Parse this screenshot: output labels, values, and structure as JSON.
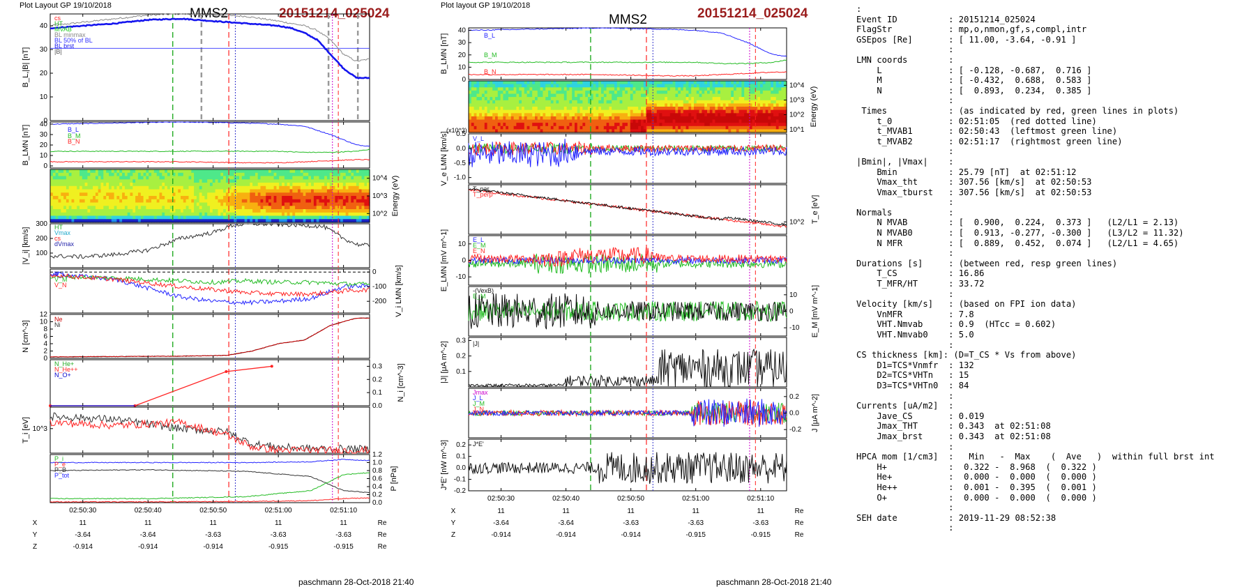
{
  "header": {
    "left_title": "Plot Layout GP 19/10/2018",
    "mid_title": "Plot layout GP 19/10/2018",
    "spacecraft": "MMS2",
    "event_id": "20151214_025024"
  },
  "footer": {
    "left": "paschmann 28-Oct-2018 21:40",
    "right": "paschmann 28-Oct-2018 21:40"
  },
  "colors": {
    "L": "#2222ff",
    "M": "#22bb22",
    "N": "#ff2222",
    "accent": "#9a1c1c",
    "mvab_green": "#22aa22",
    "cs_red": "#ff2222",
    "magenta": "#cc00cc"
  },
  "time_axis": {
    "start": "02:50:25",
    "end": "02:51:14",
    "ticks": [
      "02:50:30",
      "02:50:40",
      "02:50:50",
      "02:51:00",
      "02:51:10"
    ]
  },
  "coords_table": {
    "labels": [
      "X",
      "Y",
      "Z"
    ],
    "unit": "Re",
    "left": [
      [
        "11",
        "11",
        "11",
        "11",
        "11"
      ],
      [
        "-3.64",
        "-3.64",
        "-3.63",
        "-3.63",
        "-3.63"
      ],
      [
        "-0.914",
        "-0.914",
        "-0.914",
        "-0.915",
        "-0.915"
      ]
    ],
    "right": [
      [
        "11",
        "11",
        "11",
        "11",
        "11"
      ],
      [
        "-3.64",
        "-3.64",
        "-3.63",
        "-3.63",
        "-3.63"
      ],
      [
        "-0.914",
        "-0.914",
        "-0.914",
        "-0.915",
        "-0.915"
      ]
    ]
  },
  "chart_data": [
    {
      "type": "line",
      "panel": "left-1",
      "ylabel": "B_L,|B| [nT]",
      "ylim": [
        0,
        45
      ],
      "yticks": [
        "0",
        "10",
        "20",
        "30",
        "40"
      ],
      "legend": [
        "cs",
        "HT",
        "MVAB",
        "BL minmax",
        "BL 50% of BL",
        "BL brst",
        "|B|"
      ],
      "series": [
        {
          "name": "BL brst",
          "color": "#1515ee",
          "x": [
            25,
            30,
            35,
            40,
            45,
            50,
            55,
            60,
            62,
            64,
            66,
            68,
            70,
            72,
            74
          ],
          "y": [
            39,
            40,
            41,
            42.5,
            43,
            42,
            41,
            40,
            39,
            37,
            34,
            28,
            22,
            18,
            18
          ]
        },
        {
          "name": "|B|",
          "color": "#888888",
          "x": [
            25,
            30,
            35,
            40,
            45,
            50,
            55,
            60,
            62,
            64,
            66,
            68,
            70,
            72,
            74
          ],
          "y": [
            40,
            41.5,
            43,
            44.5,
            45,
            44.5,
            44,
            42,
            41,
            40,
            38,
            34,
            28,
            25,
            26
          ]
        },
        {
          "name": "BL 50% of BL",
          "color": "#3333ff",
          "x": [
            25,
            74
          ],
          "y": [
            30.5,
            30.5
          ]
        }
      ]
    },
    {
      "type": "line",
      "panel": "left-2",
      "ylabel": "B_LMN [nT]",
      "ylim": [
        -2,
        42
      ],
      "yticks": [
        "0",
        "10",
        "20",
        "30",
        "40"
      ],
      "legend": [
        "B_L",
        "B_M",
        "B_N"
      ],
      "series": [
        {
          "name": "B_L",
          "color": "#2222ff",
          "x": [
            25,
            35,
            45,
            55,
            60,
            64,
            68,
            72,
            74
          ],
          "y": [
            40,
            41,
            42,
            41,
            40,
            38,
            30,
            20,
            19
          ]
        },
        {
          "name": "B_M",
          "color": "#22bb22",
          "x": [
            25,
            35,
            45,
            55,
            60,
            64,
            68,
            72,
            74
          ],
          "y": [
            14,
            14,
            14,
            14,
            14,
            13,
            13,
            14,
            16
          ]
        },
        {
          "name": "B_N",
          "color": "#ff2222",
          "x": [
            25,
            35,
            45,
            55,
            60,
            64,
            68,
            72,
            74
          ],
          "y": [
            4,
            4,
            4,
            3,
            3,
            4,
            5,
            6,
            6
          ]
        }
      ]
    },
    {
      "type": "heatmap",
      "panel": "left-3",
      "ylabel": "Energy (eV)",
      "yticks": [
        "10^2",
        "10^3",
        "10^4"
      ]
    },
    {
      "type": "line",
      "panel": "left-4",
      "ylabel": "|V_i| [km/s]",
      "ylim": [
        0,
        300
      ],
      "yticks": [
        "100",
        "200",
        "300"
      ],
      "legend": [
        "HT",
        "Vmax",
        "cs",
        "dVmax"
      ],
      "series": [
        {
          "name": "|V_i|",
          "color": "#333333",
          "x": [
            25,
            30,
            35,
            40,
            45,
            50,
            53,
            56,
            60,
            64,
            67,
            70,
            72,
            74
          ],
          "y": [
            80,
            75,
            90,
            120,
            200,
            240,
            290,
            300,
            295,
            290,
            280,
            200,
            160,
            150
          ]
        }
      ]
    },
    {
      "type": "line",
      "panel": "left-5",
      "ylabel": "V_i LMN [km/s]",
      "ylim": [
        -280,
        20
      ],
      "yticks": [
        "0",
        "-100",
        "-200"
      ],
      "legend": [
        "V_L",
        "V_M",
        "V_N"
      ],
      "series": [
        {
          "name": "V_L",
          "color": "#2222ff",
          "x": [
            25,
            35,
            45,
            50,
            55,
            60,
            65,
            70,
            74
          ],
          "y": [
            -10,
            -50,
            -170,
            -200,
            -210,
            -200,
            -180,
            -100,
            -95
          ]
        },
        {
          "name": "V_M",
          "color": "#22bb22",
          "x": [
            25,
            35,
            45,
            50,
            55,
            60,
            65,
            70,
            74
          ],
          "y": [
            -30,
            -40,
            -60,
            -70,
            -60,
            -70,
            -70,
            -80,
            -85
          ]
        },
        {
          "name": "V_N",
          "color": "#ff2222",
          "x": [
            25,
            35,
            45,
            50,
            55,
            60,
            65,
            70,
            74
          ],
          "y": [
            -20,
            -50,
            -100,
            -120,
            -140,
            -150,
            -150,
            -130,
            -120
          ]
        }
      ]
    },
    {
      "type": "line",
      "panel": "left-6",
      "ylabel": "N [cm^-3]",
      "ylim": [
        0,
        12
      ],
      "yticks": [
        "0",
        "2",
        "4",
        "6",
        "8",
        "10",
        "12"
      ],
      "legend": [
        "Ne",
        "Ni"
      ],
      "series": [
        {
          "name": "Ne",
          "color": "#cc0000",
          "x": [
            25,
            35,
            45,
            52,
            56,
            60,
            64,
            68,
            72,
            74
          ],
          "y": [
            0.4,
            0.5,
            0.6,
            0.8,
            2,
            4,
            5,
            9,
            11,
            11
          ]
        },
        {
          "name": "Ni",
          "color": "#333333",
          "x": [
            25,
            35,
            45,
            52,
            56,
            60,
            64,
            68,
            72,
            74
          ],
          "y": [
            0.4,
            0.5,
            0.6,
            0.8,
            2,
            4,
            5,
            9,
            11,
            11
          ]
        }
      ]
    },
    {
      "type": "line",
      "panel": "left-7",
      "ylabel": "N_i [cm^-3]",
      "ylim": [
        0,
        0.35
      ],
      "yticks": [
        "0.0",
        "0.1",
        "0.2",
        "0.3"
      ],
      "legend": [
        "N_He+",
        "N_He++",
        "N_O+"
      ],
      "series": [
        {
          "name": "N_He++",
          "color": "#ff2222",
          "x": [
            25,
            38,
            52,
            59
          ],
          "y": [
            0,
            0,
            0.26,
            0.3
          ]
        }
      ]
    },
    {
      "type": "line",
      "panel": "left-8",
      "ylabel": "T_i [eV]",
      "yticks": [
        "10^3"
      ],
      "series": [
        {
          "name": "T_par",
          "color": "#333333",
          "x": [
            25,
            35,
            45,
            52,
            56,
            60,
            65,
            70,
            74
          ],
          "y": [
            1400,
            1300,
            1000,
            900,
            500,
            400,
            350,
            340,
            330
          ]
        },
        {
          "name": "T_perp",
          "color": "#ff2222",
          "x": [
            25,
            35,
            45,
            52,
            56,
            60,
            65,
            70,
            74
          ],
          "y": [
            1200,
            1100,
            1200,
            800,
            400,
            300,
            300,
            280,
            290
          ]
        }
      ]
    },
    {
      "type": "line",
      "panel": "left-9",
      "ylabel": "P [nPa]",
      "ylim": [
        0,
        1.2
      ],
      "yticks": [
        "0.0",
        "0.2",
        "0.4",
        "0.6",
        "0.8",
        "1.0",
        "1.2"
      ],
      "legend": [
        "P_i",
        "P_e",
        "P_B",
        "P_tot"
      ],
      "series": [
        {
          "name": "P_tot",
          "color": "#2222ff",
          "x": [
            25,
            40,
            55,
            65,
            70,
            74
          ],
          "y": [
            1.0,
            1.0,
            1.0,
            1.02,
            1.08,
            1.05
          ]
        },
        {
          "name": "P_B",
          "color": "#333333",
          "x": [
            25,
            40,
            55,
            65,
            70,
            74
          ],
          "y": [
            0.8,
            0.82,
            0.78,
            0.65,
            0.3,
            0.25
          ]
        },
        {
          "name": "P_i",
          "color": "#22bb22",
          "x": [
            25,
            40,
            55,
            65,
            70,
            74
          ],
          "y": [
            0.1,
            0.1,
            0.15,
            0.3,
            0.7,
            0.75
          ]
        },
        {
          "name": "P_e",
          "color": "#ff2222",
          "x": [
            25,
            40,
            55,
            65,
            70,
            74
          ],
          "y": [
            0.02,
            0.02,
            0.03,
            0.05,
            0.1,
            0.12
          ]
        }
      ]
    },
    {
      "type": "line",
      "panel": "mid-1",
      "ylabel": "B_LMN [nT]",
      "ylim": [
        0,
        42
      ],
      "yticks": [
        "0",
        "10",
        "20",
        "30",
        "40"
      ],
      "legend": [
        "B_L",
        "B_M",
        "B_N"
      ],
      "series": [
        {
          "name": "B_L",
          "color": "#2222ff",
          "x": [
            25,
            35,
            45,
            55,
            60,
            64,
            68,
            72,
            74
          ],
          "y": [
            40,
            41,
            42,
            41,
            40,
            38,
            30,
            20,
            19
          ]
        },
        {
          "name": "B_M",
          "color": "#22bb22",
          "x": [
            25,
            35,
            45,
            55,
            60,
            64,
            68,
            72,
            74
          ],
          "y": [
            14,
            14,
            14,
            14,
            14,
            13,
            13,
            14,
            16
          ]
        },
        {
          "name": "B_N",
          "color": "#ff2222",
          "x": [
            25,
            35,
            45,
            55,
            60,
            64,
            68,
            72,
            74
          ],
          "y": [
            4,
            4,
            4,
            3,
            3,
            4,
            5,
            6,
            6
          ]
        }
      ]
    },
    {
      "type": "heatmap",
      "panel": "mid-2",
      "ylabel": "Energy (eV)",
      "yticks": [
        "10^1",
        "10^2",
        "10^3",
        "10^4"
      ]
    },
    {
      "type": "line",
      "panel": "mid-3",
      "ylabel": "V_e LMN [km/s]",
      "ylim": [
        -1.2,
        0.5
      ],
      "yticks": [
        "0.5",
        "0.0",
        "-0.5",
        "-1.0"
      ],
      "legend": [
        "V_L"
      ]
    },
    {
      "type": "line",
      "panel": "mid-4",
      "ylabel": "T_e [eV]",
      "yticks": [
        "10^2"
      ],
      "legend": [
        "T_par",
        "T_perp"
      ]
    },
    {
      "type": "line",
      "panel": "mid-5",
      "ylabel": "E_LMN [mV m^-1]",
      "ylim": [
        -15,
        15
      ],
      "yticks": [
        "10",
        "0",
        "-10"
      ],
      "legend": [
        "E_L",
        "E_M",
        "E_N"
      ]
    },
    {
      "type": "line",
      "panel": "mid-6",
      "ylabel": "E_M [mV m^-1]",
      "ylim": [
        -15,
        15
      ],
      "yticks": [
        "10",
        "0",
        "-10"
      ],
      "legend": [
        "-(VexB)",
        "E_M"
      ]
    },
    {
      "type": "line",
      "panel": "mid-7",
      "ylabel": "|J| [μA m^-2]",
      "ylim": [
        0,
        0.32
      ],
      "yticks": [
        "0.1",
        "0.2",
        "0.3"
      ],
      "legend": [
        "|J|"
      ]
    },
    {
      "type": "line",
      "panel": "mid-8",
      "ylabel": "J [μA m^-2]",
      "ylim": [
        -0.3,
        0.3
      ],
      "yticks": [
        "0.2",
        "0.0",
        "-0.2"
      ],
      "legend": [
        "Jmax",
        "J_L",
        "J_M",
        "J_N"
      ]
    },
    {
      "type": "line",
      "panel": "mid-9",
      "ylabel": "J*E' [nW m^-3]",
      "ylim": [
        -0.2,
        0.25
      ],
      "yticks": [
        "0.2",
        "0.1",
        "0.0",
        "-0.1",
        "-0.2"
      ],
      "legend": [
        "J*E'"
      ]
    }
  ],
  "info": {
    "lines": [
      ":",
      "Event ID          : 20151214_025024",
      "FlagStr           : mp,o,nmon,gf,s,compl,intr",
      "GSEpos [Re]       : [ 11.00, -3.64, -0.91 ]",
      "                  :",
      "LMN coords        :",
      "    L             : [ -0.128, -0.687,  0.716 ]",
      "    M             : [ -0.432,  0.688,  0.583 ]",
      "    N             : [  0.893,  0.234,  0.385 ]",
      "                  :",
      " Times            : (as indicated by red, green lines in plots)",
      "    t_0           : 02:51:05  (red dotted line)",
      "    t_MVAB1       : 02:50:43  (leftmost green line)",
      "    t_MVAB2       : 02:51:17  (rightmost green line)",
      "                  :",
      "|Bmin|, |Vmax|    :",
      "    Bmin          : 25.79 [nT]  at 02:51:12",
      "    Vmax_tht      : 307.56 [km/s]  at 02:50:53",
      "    Vmax_tburst   : 307.56 [km/s]  at 02:50:53",
      "                  :",
      "Normals           :",
      "    N MVAB        : [  0.900,  0.224,  0.373 ]   (L2/L1 = 2.13)",
      "    N MVAB0       : [  0.913, -0.277, -0.300 ]   (L3/L2 = 11.32)",
      "    N MFR         : [  0.889,  0.452,  0.074 ]   (L2/L1 = 4.65)",
      "                  :",
      "Durations [s]     : (between red, resp green lines)",
      "    T_CS          : 16.86",
      "    T_MFR/HT      : 33.72",
      "                  :",
      "Velocity [km/s]   : (based on FPI ion data)",
      "    VnMFR         : 7.8",
      "    VHT.Nmvab     : 0.9  (HTcc = 0.602)",
      "    VHT.Nmvab0    : 5.0",
      "                  :",
      "CS thickness [km]: (D=T_CS * Vs from above)",
      "    D1=TCS*Vnmfr  : 132",
      "    D2=TCS*VHTn   : 15",
      "    D3=TCS*VHTn0  : 84",
      "                  :",
      "Currents [uA/m2]  :",
      "    Jave_CS       : 0.019",
      "    Jmax_THT      : 0.343  at 02:51:08",
      "    Jmax_brst     : 0.343  at 02:51:08",
      "                  :",
      "HPCA mom [1/cm3]  :   Min   -  Max    (  Ave   )  within full brst int",
      "    H+            :  0.322 -  8.968  (  0.322 )",
      "    He+           :  0.000 -  0.000  (  0.000 )",
      "    He++          :  0.001 -  0.395  (  0.001 )",
      "    O+            :  0.000 -  0.000  (  0.000 )",
      "                  :",
      "SEH date          : 2019-11-29 08:52:38",
      "                  :"
    ]
  }
}
